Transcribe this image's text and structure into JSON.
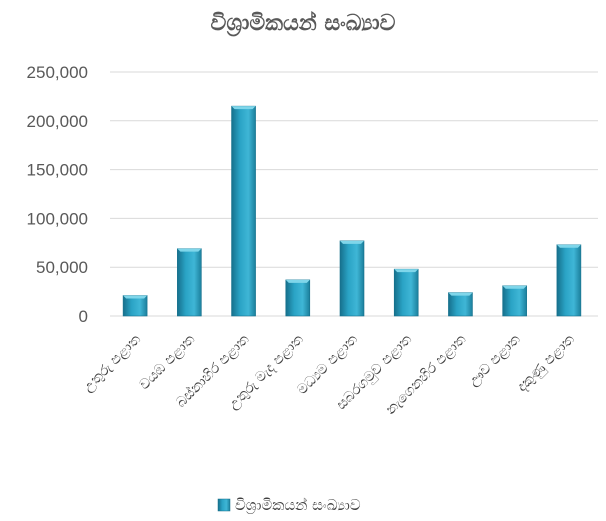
{
  "chart_data": {
    "type": "bar",
    "title": "විශ්‍රාමිකයන් සංඛ්‍යාව",
    "categories": [
      "උතුරු පළාත",
      "වයඹ පළාත",
      "බස්නාහිර පළාත",
      "උතුරු මැද පළාත",
      "මධ්‍යම පළාත",
      "සබරගමුව පළාත",
      "නැගෙනහිර පළාත",
      "ඌව පළාත",
      "දකුණු පළාත"
    ],
    "series": [
      {
        "name": "විශ්‍රාමිකයන් සංඛ්‍යාව",
        "values": [
          21000,
          69000,
          215000,
          37000,
          77000,
          48000,
          24000,
          31000,
          73000
        ]
      }
    ],
    "ylim": [
      0,
      250000
    ],
    "yticks": [
      0,
      50000,
      100000,
      150000,
      200000,
      250000
    ],
    "ytick_labels": [
      "0",
      "50,000",
      "100,000",
      "150,000",
      "200,000",
      "250,000"
    ],
    "grid": true,
    "legend": "bottom",
    "colors": {
      "bar": "#2aa3c5",
      "bar_dark": "#16708c",
      "bar_light": "#7fd6ea",
      "grid": "#d9d9d9"
    }
  }
}
